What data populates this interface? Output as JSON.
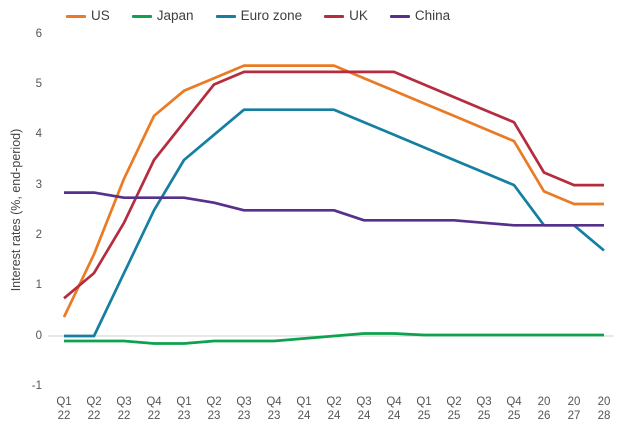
{
  "chart_data": {
    "type": "line",
    "title": "",
    "ylabel": "Interest rates (%, end-period)",
    "xlabel": "",
    "ylim": [
      -1,
      6
    ],
    "yticks": [
      6,
      5,
      4,
      3,
      2,
      1,
      0,
      -1
    ],
    "grid": "zero-baseline only",
    "legend_position": "top",
    "categories": [
      [
        "Q1",
        "22"
      ],
      [
        "Q2",
        "22"
      ],
      [
        "Q3",
        "22"
      ],
      [
        "Q4",
        "22"
      ],
      [
        "Q1",
        "23"
      ],
      [
        "Q2",
        "23"
      ],
      [
        "Q3",
        "23"
      ],
      [
        "Q4",
        "23"
      ],
      [
        "Q1",
        "24"
      ],
      [
        "Q2",
        "24"
      ],
      [
        "Q3",
        "24"
      ],
      [
        "Q4",
        "24"
      ],
      [
        "Q1",
        "25"
      ],
      [
        "Q2",
        "25"
      ],
      [
        "Q3",
        "25"
      ],
      [
        "Q4",
        "25"
      ],
      [
        "20",
        "26"
      ],
      [
        "20",
        "27"
      ],
      [
        "20",
        "28"
      ]
    ],
    "series": [
      {
        "name": "US",
        "color": "#EA7A24",
        "values": [
          0.375,
          1.625,
          3.125,
          4.375,
          4.875,
          5.125,
          5.375,
          5.375,
          5.375,
          5.375,
          5.125,
          4.875,
          4.625,
          4.375,
          4.125,
          3.875,
          2.875,
          2.625,
          2.625
        ]
      },
      {
        "name": "Japan",
        "color": "#0DA24F",
        "values": [
          -0.1,
          -0.1,
          -0.1,
          -0.15,
          -0.15,
          -0.1,
          -0.1,
          -0.1,
          -0.05,
          0,
          0.05,
          0.05,
          0.02,
          0.02,
          0.02,
          0.02,
          0.02,
          0.02,
          0.02
        ]
      },
      {
        "name": "Euro zone",
        "color": "#147FA0",
        "values": [
          0,
          0,
          1.25,
          2.5,
          3.5,
          4.0,
          4.5,
          4.5,
          4.5,
          4.5,
          4.25,
          4.0,
          3.75,
          3.5,
          3.25,
          3.0,
          2.2,
          2.2,
          1.7
        ]
      },
      {
        "name": "UK",
        "color": "#B52C3E",
        "values": [
          0.75,
          1.25,
          2.25,
          3.5,
          4.25,
          5.0,
          5.25,
          5.25,
          5.25,
          5.25,
          5.25,
          5.25,
          5.0,
          4.75,
          4.5,
          4.25,
          3.25,
          3.0,
          3.0
        ]
      },
      {
        "name": "China",
        "color": "#55318C",
        "values": [
          2.85,
          2.85,
          2.75,
          2.75,
          2.75,
          2.65,
          2.5,
          2.5,
          2.5,
          2.5,
          2.3,
          2.3,
          2.3,
          2.3,
          2.25,
          2.2,
          2.2,
          2.2,
          2.2
        ]
      }
    ],
    "colors": {
      "baseline": "#DADADA",
      "tick_text": "#555555",
      "axis_title_text": "#454545",
      "legend_text": "#3F3F3F"
    }
  }
}
